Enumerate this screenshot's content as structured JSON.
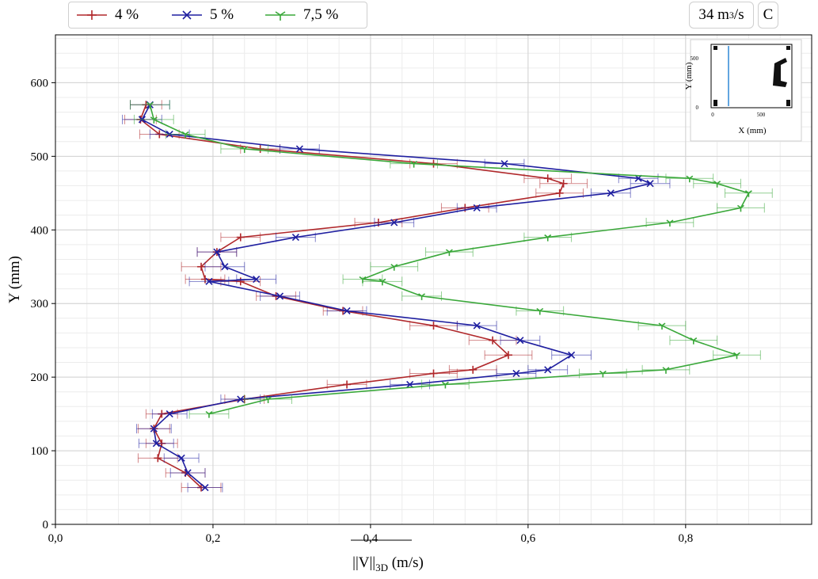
{
  "badges": {
    "flow": "34 m",
    "flow_exp": "3",
    "flow_unit": "/s",
    "letter": "C"
  },
  "inset": {
    "xlabel": "X (mm)",
    "ylabel": "Y (mm)",
    "xticks": [
      "0",
      "500"
    ],
    "yticks": [
      "0",
      "500"
    ]
  },
  "colors": {
    "s4": "#b0282b",
    "s5": "#1f1fa0",
    "s75": "#3aa83a"
  },
  "chart_data": {
    "type": "line",
    "xlabel_main": "||V||",
    "xlabel_sub": "3D",
    "xlabel_unit": " (m/s)",
    "ylabel": "Y (mm)",
    "xlim": [
      0.0,
      0.96
    ],
    "ylim": [
      0,
      665
    ],
    "xticks": [
      0.0,
      0.2,
      0.4,
      0.6,
      0.8
    ],
    "xtick_labels": [
      "0,0",
      "0,2",
      "0,4",
      "0,6",
      "0,8"
    ],
    "yticks": [
      0,
      100,
      200,
      300,
      400,
      500,
      600
    ],
    "ytick_labels": [
      "0",
      "100",
      "200",
      "300",
      "400",
      "500",
      "600"
    ],
    "grid": true,
    "legend_position": "top-left",
    "series": [
      {
        "name": "4 %",
        "marker": "+",
        "color": "#b0282b",
        "points": [
          [
            0.115,
            570
          ],
          [
            0.108,
            550
          ],
          [
            0.132,
            530
          ],
          [
            0.26,
            510
          ],
          [
            0.48,
            490
          ],
          [
            0.625,
            470
          ],
          [
            0.645,
            463
          ],
          [
            0.64,
            450
          ],
          [
            0.52,
            430
          ],
          [
            0.41,
            410
          ],
          [
            0.235,
            390
          ],
          [
            0.205,
            370
          ],
          [
            0.185,
            350
          ],
          [
            0.19,
            333
          ],
          [
            0.235,
            330
          ],
          [
            0.28,
            310
          ],
          [
            0.365,
            290
          ],
          [
            0.48,
            270
          ],
          [
            0.555,
            250
          ],
          [
            0.575,
            230
          ],
          [
            0.53,
            210
          ],
          [
            0.48,
            205
          ],
          [
            0.37,
            190
          ],
          [
            0.24,
            170
          ],
          [
            0.135,
            150
          ],
          [
            0.125,
            130
          ],
          [
            0.135,
            110
          ],
          [
            0.13,
            90
          ],
          [
            0.165,
            70
          ],
          [
            0.185,
            50
          ]
        ],
        "err": [
          0.02,
          0.02,
          0.025,
          0.025,
          0.03,
          0.03,
          0.03,
          0.03,
          0.03,
          0.03,
          0.025,
          0.025,
          0.025,
          0.025,
          0.025,
          0.025,
          0.025,
          0.03,
          0.03,
          0.03,
          0.03,
          0.03,
          0.025,
          0.025,
          0.02,
          0.02,
          0.02,
          0.025,
          0.025,
          0.025
        ]
      },
      {
        "name": "5 %",
        "marker": "x",
        "color": "#1f1fa0",
        "points": [
          [
            0.12,
            570
          ],
          [
            0.11,
            550
          ],
          [
            0.145,
            530
          ],
          [
            0.31,
            510
          ],
          [
            0.57,
            490
          ],
          [
            0.74,
            470
          ],
          [
            0.755,
            463
          ],
          [
            0.705,
            450
          ],
          [
            0.535,
            430
          ],
          [
            0.43,
            410
          ],
          [
            0.305,
            390
          ],
          [
            0.205,
            370
          ],
          [
            0.215,
            350
          ],
          [
            0.255,
            333
          ],
          [
            0.195,
            330
          ],
          [
            0.285,
            310
          ],
          [
            0.37,
            290
          ],
          [
            0.535,
            270
          ],
          [
            0.59,
            250
          ],
          [
            0.655,
            230
          ],
          [
            0.625,
            210
          ],
          [
            0.585,
            205
          ],
          [
            0.45,
            190
          ],
          [
            0.235,
            170
          ],
          [
            0.145,
            150
          ],
          [
            0.125,
            130
          ],
          [
            0.128,
            110
          ],
          [
            0.16,
            90
          ],
          [
            0.168,
            70
          ],
          [
            0.19,
            50
          ]
        ],
        "err": [
          0.025,
          0.025,
          0.025,
          0.025,
          0.025,
          0.025,
          0.025,
          0.025,
          0.025,
          0.025,
          0.025,
          0.025,
          0.025,
          0.025,
          0.025,
          0.025,
          0.025,
          0.025,
          0.025,
          0.025,
          0.025,
          0.025,
          0.025,
          0.025,
          0.022,
          0.022,
          0.022,
          0.022,
          0.022,
          0.022
        ]
      },
      {
        "name": "7,5 %",
        "marker": "1",
        "color": "#3aa83a",
        "points": [
          [
            0.12,
            570
          ],
          [
            0.125,
            550
          ],
          [
            0.165,
            530
          ],
          [
            0.24,
            510
          ],
          [
            0.455,
            490
          ],
          [
            0.805,
            470
          ],
          [
            0.84,
            463
          ],
          [
            0.88,
            450
          ],
          [
            0.87,
            430
          ],
          [
            0.78,
            410
          ],
          [
            0.625,
            390
          ],
          [
            0.5,
            370
          ],
          [
            0.43,
            350
          ],
          [
            0.39,
            333
          ],
          [
            0.415,
            330
          ],
          [
            0.465,
            310
          ],
          [
            0.615,
            290
          ],
          [
            0.77,
            270
          ],
          [
            0.81,
            250
          ],
          [
            0.865,
            230
          ],
          [
            0.775,
            210
          ],
          [
            0.695,
            205
          ],
          [
            0.495,
            190
          ],
          [
            0.27,
            170
          ],
          [
            0.195,
            150
          ]
        ],
        "err": [
          0.025,
          0.025,
          0.025,
          0.03,
          0.03,
          0.03,
          0.03,
          0.03,
          0.03,
          0.03,
          0.03,
          0.03,
          0.03,
          0.025,
          0.025,
          0.025,
          0.03,
          0.03,
          0.03,
          0.03,
          0.03,
          0.03,
          0.03,
          0.03,
          0.025
        ]
      }
    ]
  }
}
